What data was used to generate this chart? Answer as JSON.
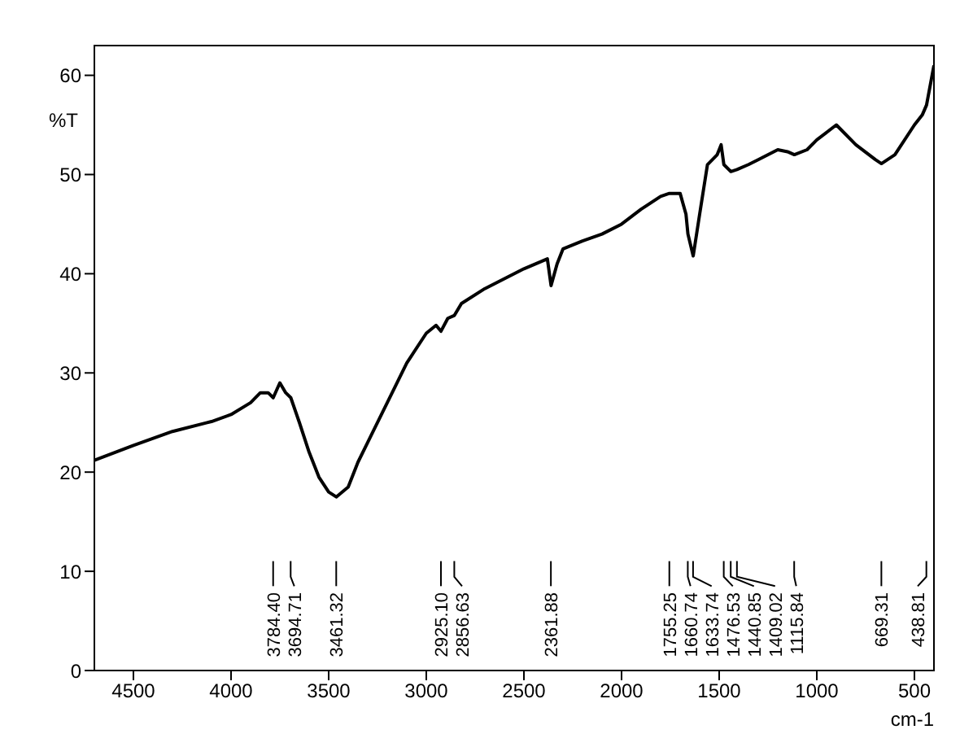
{
  "chart_data": {
    "type": "line",
    "xlabel": "cm-1",
    "ylabel": "%T",
    "x": [
      4700,
      4500,
      4300,
      4100,
      4000,
      3900,
      3850,
      3810,
      3784,
      3750,
      3720,
      3694,
      3650,
      3600,
      3550,
      3500,
      3461,
      3400,
      3350,
      3300,
      3200,
      3100,
      3000,
      2950,
      2925,
      2890,
      2856,
      2820,
      2700,
      2600,
      2500,
      2380,
      2361,
      2330,
      2300,
      2200,
      2100,
      2000,
      1900,
      1800,
      1755,
      1700,
      1670,
      1660,
      1633,
      1600,
      1560,
      1510,
      1490,
      1476,
      1440,
      1409,
      1350,
      1300,
      1200,
      1150,
      1115,
      1050,
      1000,
      900,
      800,
      700,
      669,
      600,
      500,
      460,
      438,
      400
    ],
    "series": [
      {
        "color": "#000000",
        "values": [
          21.2,
          22.7,
          24.1,
          25.1,
          25.8,
          27,
          28,
          28,
          27.5,
          29,
          28,
          27.5,
          25,
          22,
          19.5,
          18,
          17.5,
          18.5,
          21,
          23,
          27,
          31,
          34,
          34.8,
          34.2,
          35.5,
          35.8,
          37,
          38.5,
          39.5,
          40.5,
          41.5,
          38.8,
          41,
          42.5,
          43.3,
          44,
          45,
          46.5,
          47.8,
          48.1,
          48.1,
          46,
          44,
          41.8,
          46,
          51,
          52,
          53,
          51,
          50.3,
          50.5,
          51,
          51.5,
          52.5,
          52.3,
          52,
          52.5,
          53.5,
          55,
          53,
          51.5,
          51.1,
          52,
          55,
          56,
          57,
          61
        ]
      }
    ],
    "xlim": [
      4700,
      400
    ],
    "xticks": [
      4500,
      4000,
      3500,
      3000,
      2500,
      2000,
      1500,
      1000,
      500
    ],
    "ylim": [
      0,
      63
    ],
    "yticks": [
      0,
      10,
      20,
      30,
      40,
      50,
      60
    ],
    "grid": false,
    "marker": "none",
    "line_style": "solid",
    "annotations": [
      {
        "text": "3784.40",
        "x": 3784.4
      },
      {
        "text": "3694.71",
        "x": 3694.71
      },
      {
        "text": "3461.32",
        "x": 3461.32
      },
      {
        "text": "2925.10",
        "x": 2925.1
      },
      {
        "text": "2856.63",
        "x": 2856.63
      },
      {
        "text": "2361.88",
        "x": 2361.88
      },
      {
        "text": "1755.25",
        "x": 1755.25
      },
      {
        "text": "1660.74",
        "x": 1660.74
      },
      {
        "text": "1633.74",
        "x": 1633.74
      },
      {
        "text": "1476.53",
        "x": 1476.53
      },
      {
        "text": "1440.85",
        "x": 1440.85
      },
      {
        "text": "1409.02",
        "x": 1409.02
      },
      {
        "text": "1115.84",
        "x": 1115.84
      },
      {
        "text": "669.31",
        "x": 669.31
      },
      {
        "text": "438.81",
        "x": 438.81
      }
    ]
  }
}
